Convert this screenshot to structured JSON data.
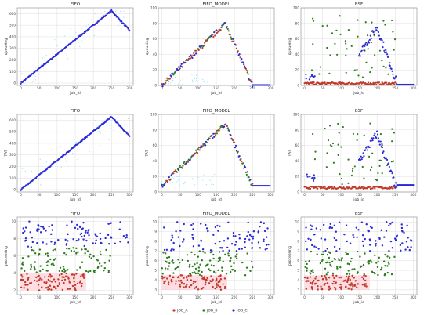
{
  "figure": {
    "legend": [
      {
        "label": "JOB_A",
        "color": "#c0392b"
      },
      {
        "label": "JOB_B",
        "color": "#2e7d1f"
      },
      {
        "label": "JOB_C",
        "color": "#2a2ad6"
      }
    ],
    "highlight_color": "#ffb3c1",
    "cyan_color": "#7fe6ff"
  },
  "chart_data": [
    {
      "type": "scatter",
      "title": "FIFO",
      "xlabel": "job_id",
      "ylabel": "queueing",
      "xlim": [
        -10,
        310
      ],
      "ylim": [
        -20,
        650
      ],
      "xticks": [
        0,
        50,
        100,
        150,
        200,
        250,
        300
      ],
      "yticks": [
        0,
        100,
        200,
        300,
        400,
        500,
        600
      ],
      "grid": true,
      "series": [
        {
          "name": "JOB_C",
          "pattern": "ramp",
          "peak_x": 250,
          "peak_y": 625,
          "end_x": 300,
          "end_y": 455
        },
        {
          "name": "cyan",
          "pattern": "scatter_cyan"
        }
      ]
    },
    {
      "type": "scatter",
      "title": "FIFO_MODEL",
      "xlabel": "job_id",
      "ylabel": "queueing",
      "xlim": [
        -10,
        310
      ],
      "ylim": [
        0,
        100
      ],
      "xticks": [
        0,
        50,
        100,
        150,
        200,
        250,
        300
      ],
      "yticks": [
        0,
        20,
        40,
        60,
        80,
        100
      ],
      "grid": true,
      "series": [
        {
          "name": "mixed",
          "pattern": "tri",
          "peak_x": 175,
          "peak_y": 80,
          "end_x": 250,
          "base": 0
        }
      ]
    },
    {
      "type": "scatter",
      "title": "BSF",
      "xlabel": "job_id",
      "ylabel": "queueing",
      "xlim": [
        -10,
        310
      ],
      "ylim": [
        0,
        100
      ],
      "xticks": [
        0,
        50,
        100,
        150,
        200,
        250,
        300
      ],
      "yticks": [
        0,
        20,
        40,
        60,
        80,
        100
      ],
      "grid": true,
      "series": [
        {
          "name": "JOB_A",
          "pattern": "low"
        },
        {
          "name": "JOB_B",
          "pattern": "spread_green"
        },
        {
          "name": "JOB_C",
          "pattern": "blue_arc"
        }
      ]
    },
    {
      "type": "scatter",
      "title": "FIFO",
      "xlabel": "job_id",
      "ylabel": "TAT",
      "xlim": [
        -10,
        310
      ],
      "ylim": [
        -20,
        650
      ],
      "xticks": [
        0,
        50,
        100,
        150,
        200,
        250,
        300
      ],
      "yticks": [
        0,
        100,
        200,
        300,
        400,
        500,
        600
      ],
      "grid": true,
      "series": [
        {
          "name": "JOB_C",
          "pattern": "ramp",
          "peak_x": 250,
          "peak_y": 630,
          "end_x": 300,
          "end_y": 460
        },
        {
          "name": "cyan",
          "pattern": "scatter_cyan"
        }
      ]
    },
    {
      "type": "scatter",
      "title": "FIFO_MODEL",
      "xlabel": "job_id",
      "ylabel": "TAT",
      "xlim": [
        -10,
        310
      ],
      "ylim": [
        0,
        100
      ],
      "xticks": [
        0,
        50,
        100,
        150,
        200,
        250,
        300
      ],
      "yticks": [
        0,
        20,
        40,
        60,
        80,
        100
      ],
      "grid": true,
      "series": [
        {
          "name": "mixed",
          "pattern": "tri",
          "peak_x": 175,
          "peak_y": 88,
          "end_x": 250,
          "base": 8
        }
      ]
    },
    {
      "type": "scatter",
      "title": "BSF",
      "xlabel": "job_id",
      "ylabel": "TAT",
      "xlim": [
        -10,
        310
      ],
      "ylim": [
        0,
        100
      ],
      "xticks": [
        0,
        50,
        100,
        150,
        200,
        250,
        300
      ],
      "yticks": [
        0,
        20,
        40,
        60,
        80,
        100
      ],
      "grid": true,
      "series": [
        {
          "name": "JOB_A",
          "pattern": "low_tat"
        },
        {
          "name": "JOB_B",
          "pattern": "spread_green"
        },
        {
          "name": "JOB_C",
          "pattern": "blue_arc_tat"
        }
      ]
    },
    {
      "type": "scatter",
      "title": "FIFO",
      "xlabel": "job_id",
      "ylabel": "processing",
      "xlim": [
        -10,
        310
      ],
      "ylim": [
        1.5,
        10.5
      ],
      "xticks": [
        0,
        50,
        100,
        150,
        200,
        250,
        300
      ],
      "yticks": [
        2,
        4,
        6,
        8,
        10
      ],
      "grid": true,
      "series": [
        {
          "name": "JOB_A",
          "range": [
            2,
            4
          ]
        },
        {
          "name": "JOB_B",
          "range": [
            4,
            7
          ]
        },
        {
          "name": "JOB_C",
          "range": [
            7,
            10
          ]
        }
      ]
    },
    {
      "type": "scatter",
      "title": "FIFO_MODEL",
      "xlabel": "job_id",
      "ylabel": "processing",
      "xlim": [
        -10,
        310
      ],
      "ylim": [
        2.5,
        10.5
      ],
      "xticks": [
        0,
        50,
        100,
        150,
        200,
        250,
        300
      ],
      "yticks": [
        3,
        4,
        5,
        6,
        7,
        8,
        9,
        10
      ],
      "grid": true,
      "series": [
        {
          "name": "JOB_A",
          "range": [
            3,
            4.5
          ]
        },
        {
          "name": "JOB_B",
          "range": [
            4.5,
            7
          ]
        },
        {
          "name": "JOB_C",
          "range": [
            7,
            10
          ]
        }
      ]
    },
    {
      "type": "scatter",
      "title": "BSF",
      "xlabel": "job_id",
      "ylabel": "processing",
      "xlim": [
        -10,
        310
      ],
      "ylim": [
        2.5,
        10.5
      ],
      "xticks": [
        0,
        50,
        100,
        150,
        200,
        250,
        300
      ],
      "yticks": [
        3,
        4,
        5,
        6,
        7,
        8,
        9,
        10
      ],
      "grid": true,
      "series": [
        {
          "name": "JOB_A",
          "range": [
            3,
            4.5
          ]
        },
        {
          "name": "JOB_B",
          "range": [
            4.5,
            7
          ]
        },
        {
          "name": "JOB_C",
          "range": [
            7,
            10
          ]
        }
      ]
    }
  ]
}
